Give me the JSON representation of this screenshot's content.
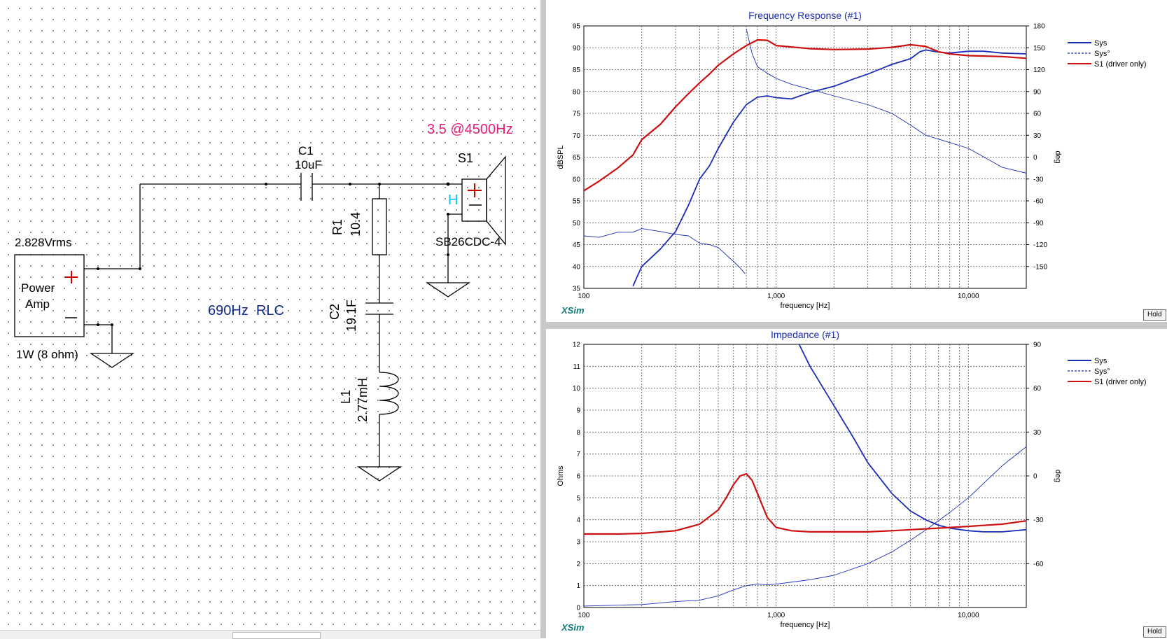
{
  "schematic": {
    "amp": {
      "voltage": "2.828Vrms",
      "label_line1": "Power",
      "label_line2": "Amp",
      "power": "1W (8 ohm)"
    },
    "c1": {
      "name": "C1",
      "value": "10uF"
    },
    "r1": {
      "name": "R1",
      "value": "10.4"
    },
    "c2": {
      "name": "C2",
      "value": "19.1F"
    },
    "l1": {
      "name": "L1",
      "value": "2.77mH"
    },
    "s1": {
      "name": "S1",
      "model": "SB26CDC-4",
      "h_mark": "H"
    },
    "note_freq": "3.5 @4500Hz",
    "note_rlc": "690Hz  RLC",
    "plus": "+",
    "minus": "−",
    "colors": {
      "wire": "#000000",
      "note_pink": "#e0207a",
      "note_navy": "#102a8a",
      "h_cyan": "#00c8e8",
      "plus_red": "#d00000"
    }
  },
  "hold_label": "Hold",
  "brand": "XSim",
  "freq_chart": {
    "title": "Frequency Response (#1)",
    "ylabel": "dBSPL",
    "y2label": "deg",
    "xlabel": "frequency [Hz]",
    "xticks": [
      "100",
      "1,000",
      "10,000"
    ],
    "ytick_labels": [
      "35",
      "40",
      "45",
      "50",
      "55",
      "60",
      "65",
      "70",
      "75",
      "80",
      "85",
      "90",
      "95"
    ],
    "y2tick_labels": [
      "-150",
      "-120",
      "-90",
      "-60",
      "-30",
      "0",
      "30",
      "60",
      "90",
      "120",
      "150",
      "180"
    ],
    "legend": [
      "Sys",
      "Sys°",
      "S1 (driver only)"
    ]
  },
  "imp_chart": {
    "title": "Impedance (#1)",
    "ylabel": "Ohms",
    "y2label": "deg",
    "xlabel": "frequency [Hz]",
    "xticks": [
      "100",
      "1,000",
      "10,000"
    ],
    "ytick_labels": [
      "0",
      "1",
      "2",
      "3",
      "4",
      "5",
      "6",
      "7",
      "8",
      "9",
      "10",
      "11",
      "12"
    ],
    "y2tick_labels": [
      "-60",
      "-30",
      "0",
      "30",
      "60",
      "90"
    ],
    "legend": [
      "Sys",
      "Sys°",
      "S1 (driver only)"
    ]
  },
  "chart_data": [
    {
      "type": "line",
      "title": "Frequency Response (#1)",
      "xlabel": "frequency [Hz]",
      "ylabel": "dBSPL",
      "y2label": "deg",
      "xscale": "log",
      "xlim": [
        100,
        20000
      ],
      "ylim": [
        35,
        95
      ],
      "y2lim": [
        -180,
        180
      ],
      "grid": true,
      "legend_position": "right",
      "series": [
        {
          "name": "Sys",
          "axis": "left",
          "color": "#1a2db5",
          "style": "solid",
          "x": [
            180,
            200,
            250,
            300,
            350,
            400,
            450,
            500,
            600,
            700,
            800,
            900,
            1000,
            1200,
            1500,
            2000,
            2500,
            3000,
            4000,
            5000,
            5600,
            6000,
            7000,
            8000,
            10000,
            12000,
            15000,
            20000
          ],
          "y": [
            35.5,
            40,
            44,
            48,
            54,
            60,
            63,
            67,
            73,
            77,
            78.7,
            79,
            78.6,
            78.3,
            79.8,
            81.2,
            82.8,
            84,
            86.2,
            87.5,
            89.1,
            89.5,
            89,
            88.8,
            89.2,
            89.2,
            88.8,
            88.6
          ]
        },
        {
          "name": "Sys°",
          "axis": "right",
          "color": "#1a2db5",
          "style": "thin",
          "x": [
            100,
            120,
            150,
            180,
            200,
            250,
            300,
            350,
            400,
            450,
            500,
            550,
            600,
            650,
            690,
            700,
            720,
            750,
            800,
            900,
            1000,
            1200,
            1500,
            2000,
            3000,
            4000,
            5000,
            6000,
            8000,
            10000,
            15000,
            20000
          ],
          "y": [
            -108,
            -110,
            -103,
            -103,
            -98,
            -102,
            -106,
            -108,
            -118,
            -120,
            -124,
            -134,
            -143,
            -152,
            -160,
            176,
            162,
            142,
            124,
            115,
            108,
            100,
            93,
            84,
            72,
            60,
            44,
            30,
            20,
            12,
            -14,
            -22
          ]
        },
        {
          "name": "S1 (driver only)",
          "axis": "left",
          "color": "#cc1010",
          "style": "thick",
          "x": [
            100,
            120,
            150,
            180,
            200,
            250,
            300,
            350,
            400,
            450,
            500,
            600,
            700,
            800,
            900,
            1000,
            1500,
            2000,
            3000,
            4000,
            5000,
            6000,
            7000,
            8000,
            10000,
            15000,
            20000
          ],
          "y": [
            57.3,
            59.5,
            62.5,
            65.5,
            69,
            72.5,
            76.5,
            79.5,
            82,
            84,
            86,
            88.6,
            90.5,
            91.8,
            91.7,
            90.5,
            89.8,
            89.6,
            89.7,
            90.1,
            90.7,
            90.3,
            89.1,
            88.6,
            88.2,
            88,
            87.6
          ]
        }
      ]
    },
    {
      "type": "line",
      "title": "Impedance (#1)",
      "xlabel": "frequency [Hz]",
      "ylabel": "Ohms",
      "y2label": "deg",
      "xscale": "log",
      "xlim": [
        100,
        20000
      ],
      "ylim": [
        0,
        12
      ],
      "y2lim": [
        -90,
        90
      ],
      "grid": true,
      "legend_position": "right",
      "series": [
        {
          "name": "Sys",
          "axis": "left",
          "color": "#1a2db5",
          "style": "solid",
          "x": [
            1300,
            1500,
            2000,
            2500,
            3000,
            4000,
            5000,
            6000,
            7000,
            8000,
            10000,
            12000,
            15000,
            20000
          ],
          "y": [
            12.1,
            11,
            9.2,
            7.8,
            6.6,
            5.2,
            4.4,
            4.0,
            3.75,
            3.62,
            3.5,
            3.45,
            3.45,
            3.55
          ]
        },
        {
          "name": "Sys°",
          "axis": "right",
          "color": "#1a2db5",
          "style": "thin",
          "x": [
            100,
            200,
            300,
            400,
            500,
            600,
            700,
            800,
            900,
            1000,
            1500,
            2000,
            3000,
            4000,
            5000,
            6000,
            8000,
            10000,
            15000,
            20000
          ],
          "y": [
            -89,
            -88,
            -86,
            -85,
            -82,
            -78,
            -75,
            -74,
            -74.5,
            -74,
            -71,
            -68,
            -60,
            -52,
            -44,
            -37,
            -25,
            -15,
            7,
            20
          ]
        },
        {
          "name": "S1 (driver only)",
          "axis": "left",
          "color": "#cc1010",
          "style": "thick",
          "x": [
            100,
            150,
            200,
            300,
            400,
            500,
            550,
            600,
            650,
            700,
            750,
            800,
            900,
            1000,
            1200,
            1500,
            2000,
            3000,
            4000,
            5000,
            7000,
            10000,
            15000,
            20000
          ],
          "y": [
            3.35,
            3.35,
            3.38,
            3.5,
            3.8,
            4.45,
            5.0,
            5.6,
            6.0,
            6.1,
            5.8,
            5.2,
            4.1,
            3.65,
            3.5,
            3.45,
            3.45,
            3.45,
            3.5,
            3.55,
            3.62,
            3.7,
            3.8,
            3.95
          ]
        }
      ]
    }
  ]
}
